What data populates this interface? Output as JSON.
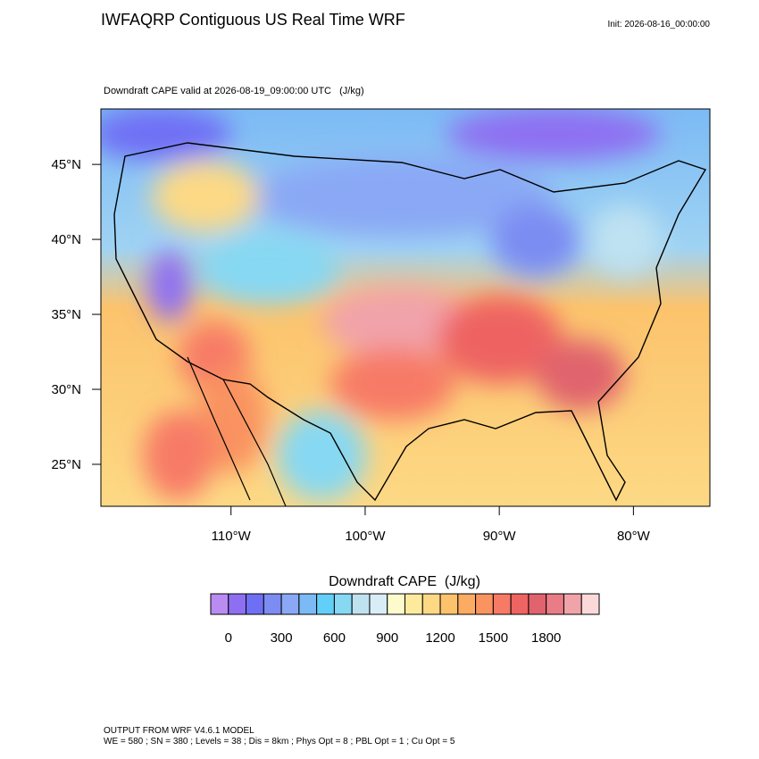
{
  "header": {
    "title": "IWFAQRP Contiguous US Real Time WRF",
    "init": "Init: 2026-08-16_00:00:00",
    "subtitle": "Downdraft CAPE valid at 2026-08-19_09:00:00 UTC   (J/kg)"
  },
  "map": {
    "latlim": [
      22.2,
      48.7
    ],
    "lonlim": [
      -119.7,
      -74.3
    ],
    "latticks": [
      {
        "value": 25,
        "label": "25°N"
      },
      {
        "value": 30,
        "label": "30°N"
      },
      {
        "value": 35,
        "label": "35°N"
      },
      {
        "value": 40,
        "label": "40°N"
      },
      {
        "value": 45,
        "label": "45°N"
      }
    ],
    "lonticks": [
      {
        "value": -110,
        "label": "110°W"
      },
      {
        "value": -100,
        "label": "100°W"
      },
      {
        "value": -90,
        "label": "90°W"
      },
      {
        "value": -80,
        "label": "80°W"
      }
    ]
  },
  "colorbar": {
    "title": "Downdraft CAPE  (J/kg)",
    "lim": [
      -100,
      2100
    ],
    "ticks": [
      0,
      300,
      600,
      900,
      1200,
      1500,
      1800
    ],
    "colors": [
      "#b98cf2",
      "#8e6ff2",
      "#6f6ff5",
      "#7c8cf2",
      "#8aa8f5",
      "#7cbaf5",
      "#62cff8",
      "#86d8f3",
      "#bfe2f1",
      "#d9edf6",
      "#fdfbcb",
      "#feea9c",
      "#fdd985",
      "#fcc36c",
      "#fbab62",
      "#f99360",
      "#f77a66",
      "#ee6462",
      "#e0636d",
      "#e97c84",
      "#f1a3aa",
      "#fcd9d9"
    ]
  },
  "footer": {
    "line1": "OUTPUT FROM WRF V4.6.1 MODEL",
    "line2": "WE = 580 ; SN = 380 ; Levels = 38 ; Dis = 8km ; Phys Opt = 8 ; PBL Opt = 1 ; Cu Opt = 5"
  }
}
